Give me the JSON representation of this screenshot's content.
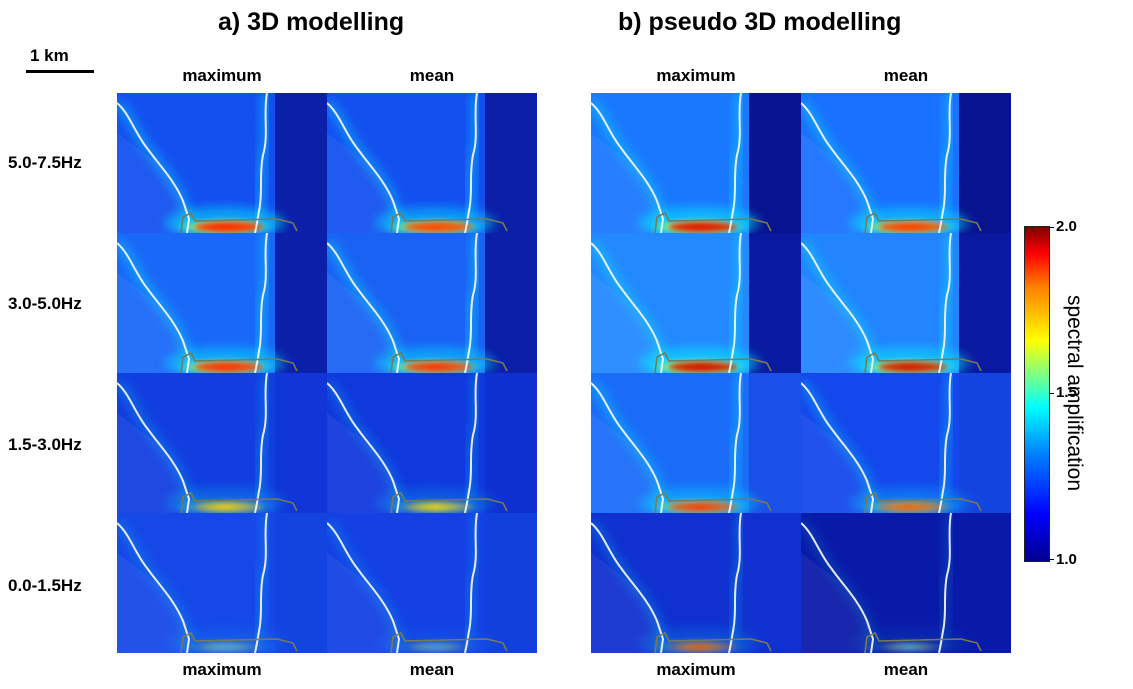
{
  "titles": {
    "left": "a) 3D modelling",
    "right": "b) pseudo 3D modelling"
  },
  "scale": {
    "label": "1 km"
  },
  "columns": {
    "top": [
      "maximum",
      "mean",
      "maximum",
      "mean"
    ],
    "bottom": [
      "maximum",
      "mean",
      "maximum",
      "mean"
    ]
  },
  "rows": [
    "5.0-7.5Hz",
    "3.0-5.0Hz",
    "1.5-3.0Hz",
    "0.0-1.5Hz"
  ],
  "colorbar": {
    "label": "spectral amplification",
    "min": "1.0",
    "mid": "1.5",
    "max": "2.0",
    "colors": {
      "low": "#00008f",
      "blue": "#0000ff",
      "cyan": "#00ffff",
      "yellow": "#ffff00",
      "red": "#ff0000",
      "high": "#800000"
    }
  },
  "panels": [
    {
      "row": 0,
      "col": 0,
      "base": "#1450f0",
      "right": "#0b1fa8",
      "band": "#ff2000",
      "glow": 0.9,
      "line": 1.0
    },
    {
      "row": 0,
      "col": 1,
      "base": "#1450f0",
      "right": "#0b1fa8",
      "band": "#ff3a00",
      "glow": 0.8,
      "line": 1.0
    },
    {
      "row": 0,
      "col": 2,
      "base": "#1a78ff",
      "right": "#08138f",
      "band": "#e01000",
      "glow": 0.9,
      "line": 1.0
    },
    {
      "row": 0,
      "col": 3,
      "base": "#1a70ff",
      "right": "#08138f",
      "band": "#ff3000",
      "glow": 0.8,
      "line": 1.0
    },
    {
      "row": 1,
      "col": 0,
      "base": "#1a68f8",
      "right": "#0b1fa8",
      "band": "#ff2000",
      "glow": 0.8,
      "line": 1.0
    },
    {
      "row": 1,
      "col": 1,
      "base": "#1a62f4",
      "right": "#0b1fa8",
      "band": "#ff2000",
      "glow": 0.75,
      "line": 1.0
    },
    {
      "row": 1,
      "col": 2,
      "base": "#2488ff",
      "right": "#0a1aa0",
      "band": "#d00800",
      "glow": 0.9,
      "line": 1.0
    },
    {
      "row": 1,
      "col": 3,
      "base": "#2284ff",
      "right": "#0a1aa0",
      "band": "#d00800",
      "glow": 0.85,
      "line": 1.0
    },
    {
      "row": 2,
      "col": 0,
      "base": "#123ee0",
      "right": "#1036d8",
      "band": "#ffd000",
      "glow": 0.35,
      "line": 0.6
    },
    {
      "row": 2,
      "col": 1,
      "base": "#1038dc",
      "right": "#0e30d0",
      "band": "#ffe000",
      "glow": 0.3,
      "line": 0.6
    },
    {
      "row": 2,
      "col": 2,
      "base": "#1a6cf8",
      "right": "#1a50e8",
      "band": "#ff2000",
      "glow": 0.6,
      "line": 0.9
    },
    {
      "row": 2,
      "col": 3,
      "base": "#1448ec",
      "right": "#1444e0",
      "band": "#ff5000",
      "glow": 0.45,
      "line": 0.8
    },
    {
      "row": 3,
      "col": 0,
      "base": "#1648e8",
      "right": "#1444e0",
      "band": "#2aa0ff",
      "glow": 0.15,
      "line": 0.5
    },
    {
      "row": 3,
      "col": 1,
      "base": "#1440e4",
      "right": "#1240dc",
      "band": "#2090ff",
      "glow": 0.1,
      "line": 0.5
    },
    {
      "row": 3,
      "col": 2,
      "base": "#1030d0",
      "right": "#1030d0",
      "band": "#ff4000",
      "glow": 0.25,
      "line": 0.6
    },
    {
      "row": 3,
      "col": 3,
      "base": "#0a1aa8",
      "right": "#0a1aa8",
      "band": "#2aa0ff",
      "glow": 0.1,
      "line": 0.4
    }
  ]
}
